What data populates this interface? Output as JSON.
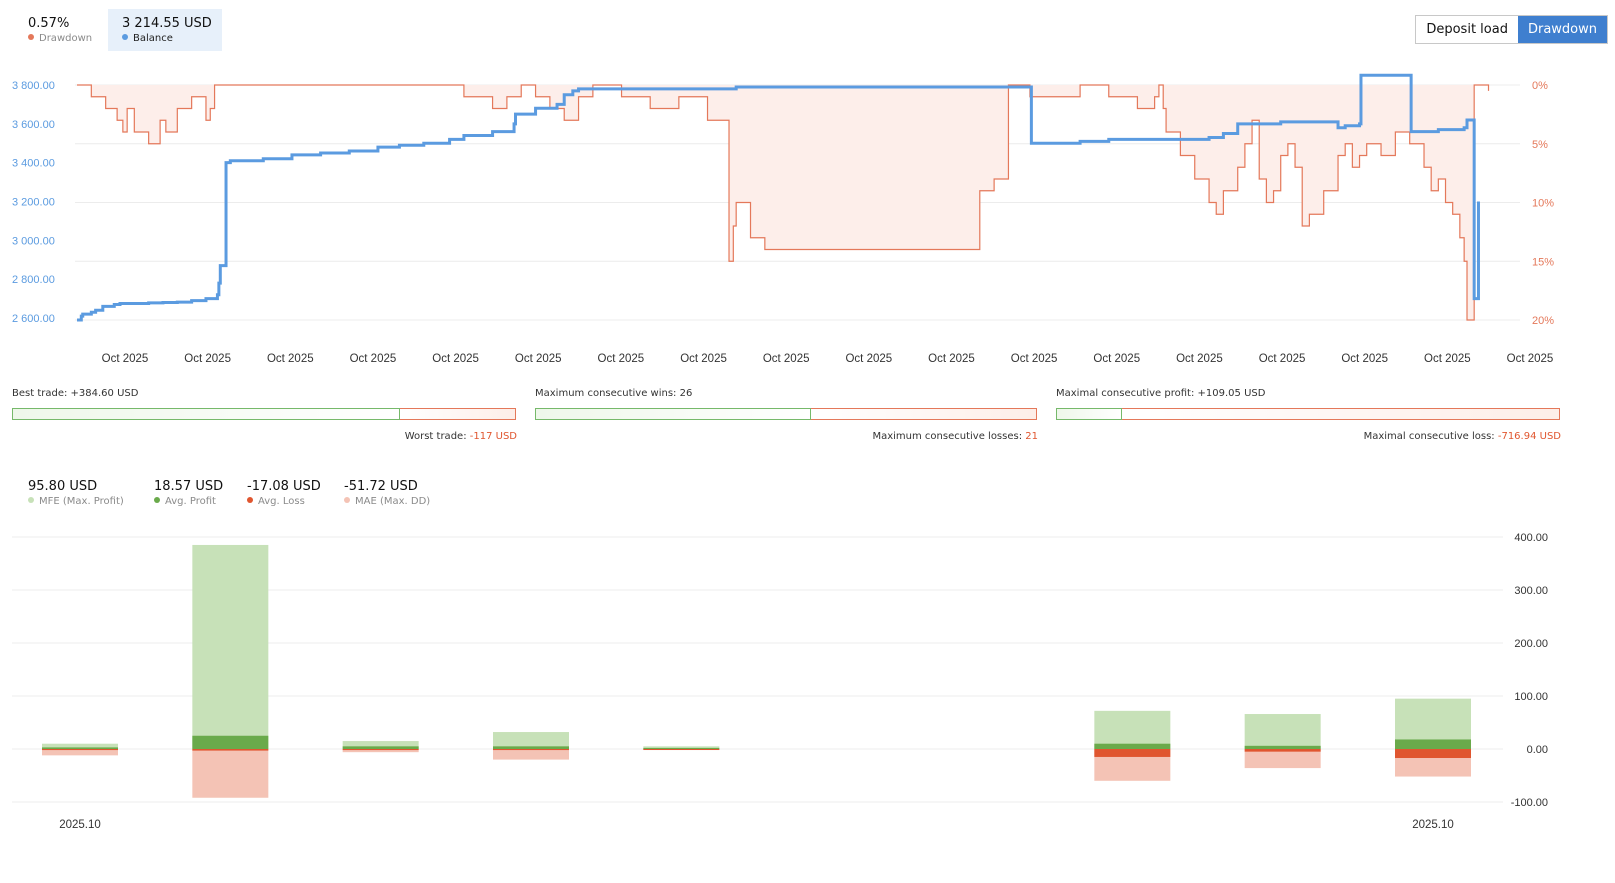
{
  "legend_top": [
    {
      "value": "0.57%",
      "label": "Drawdown",
      "color": "#e4785a"
    },
    {
      "value": "3 214.55 USD",
      "label": "Balance",
      "color": "#5b9be0"
    }
  ],
  "toggle": {
    "deposit_load": "Deposit load",
    "drawdown": "Drawdown",
    "active": "drawdown"
  },
  "chart_data": [
    {
      "type": "line",
      "title": "",
      "x_tick_labels": [
        "Oct 2025",
        "Oct 2025",
        "Oct 2025",
        "Oct 2025",
        "Oct 2025",
        "Oct 2025",
        "Oct 2025",
        "Oct 2025",
        "Oct 2025",
        "Oct 2025",
        "Oct 2025",
        "Oct 2025",
        "Oct 2025",
        "Oct 2025",
        "Oct 2025",
        "Oct 2025",
        "Oct 2025",
        "Oct 2025"
      ],
      "y_left_ticks": [
        "3 800.00",
        "3 600.00",
        "3 400.00",
        "3 200.00",
        "3 000.00",
        "2 800.00",
        "2 600.00"
      ],
      "y_left_range": [
        2590,
        3800
      ],
      "y_right_ticks": [
        "0%",
        "5%",
        "10%",
        "15%",
        "20%"
      ],
      "y_right_range": [
        0,
        20
      ],
      "grid": true,
      "series": [
        {
          "name": "Balance",
          "color": "#5b9be0",
          "axis": "left",
          "x": [
            0.0,
            0.003,
            0.004,
            0.01,
            0.013,
            0.018,
            0.026,
            0.03,
            0.04,
            0.05,
            0.06,
            0.07,
            0.08,
            0.09,
            0.098,
            0.099,
            0.1,
            0.104,
            0.107,
            0.13,
            0.15,
            0.17,
            0.19,
            0.21,
            0.225,
            0.242,
            0.25,
            0.26,
            0.27,
            0.29,
            0.305,
            0.306,
            0.32,
            0.335,
            0.34,
            0.346,
            0.35,
            0.4,
            0.41,
            0.455,
            0.46,
            0.48,
            0.52,
            0.56,
            0.58,
            0.665,
            0.666,
            0.7,
            0.72,
            0.76,
            0.79,
            0.8,
            0.81,
            0.84,
            0.87,
            0.88,
            0.885,
            0.895,
            0.896,
            0.913,
            0.93,
            0.931,
            0.94,
            0.95,
            0.96,
            0.968,
            0.97,
            0.975,
            0.978
          ],
          "y": [
            2590,
            2610,
            2620,
            2630,
            2640,
            2660,
            2670,
            2675,
            2675,
            2678,
            2680,
            2682,
            2690,
            2700,
            2720,
            2780,
            2870,
            3400,
            3410,
            3420,
            3440,
            3450,
            3460,
            3480,
            3490,
            3500,
            3500,
            3520,
            3540,
            3560,
            3600,
            3650,
            3680,
            3700,
            3750,
            3770,
            3780,
            3780,
            3780,
            3780,
            3790,
            3790,
            3790,
            3790,
            3790,
            3790,
            3500,
            3510,
            3520,
            3520,
            3530,
            3550,
            3600,
            3610,
            3610,
            3580,
            3590,
            3600,
            3850,
            3850,
            3850,
            3560,
            3560,
            3570,
            3570,
            3580,
            3620,
            2700,
            3200
          ]
        },
        {
          "name": "Drawdown",
          "color": "#e4785a",
          "axis": "right",
          "fill": "#fdeeea",
          "x": [
            0.0,
            0.01,
            0.02,
            0.028,
            0.032,
            0.035,
            0.04,
            0.05,
            0.058,
            0.062,
            0.07,
            0.08,
            0.09,
            0.093,
            0.096,
            0.1,
            0.105,
            0.15,
            0.2,
            0.24,
            0.26,
            0.27,
            0.29,
            0.3,
            0.31,
            0.32,
            0.33,
            0.34,
            0.35,
            0.36,
            0.38,
            0.4,
            0.42,
            0.44,
            0.455,
            0.458,
            0.46,
            0.47,
            0.48,
            0.49,
            0.5,
            0.51,
            0.52,
            0.53,
            0.54,
            0.55,
            0.56,
            0.57,
            0.58,
            0.59,
            0.6,
            0.62,
            0.625,
            0.63,
            0.64,
            0.65,
            0.66,
            0.665,
            0.7,
            0.72,
            0.74,
            0.752,
            0.755,
            0.758,
            0.76,
            0.77,
            0.78,
            0.79,
            0.795,
            0.8,
            0.81,
            0.815,
            0.82,
            0.825,
            0.83,
            0.835,
            0.84,
            0.845,
            0.85,
            0.855,
            0.86,
            0.87,
            0.88,
            0.885,
            0.89,
            0.895,
            0.9,
            0.91,
            0.92,
            0.93,
            0.94,
            0.945,
            0.95,
            0.955,
            0.96,
            0.965,
            0.968,
            0.97,
            0.975,
            0.98,
            0.985
          ],
          "y": [
            0,
            1,
            2,
            3,
            4,
            2,
            4,
            5,
            3,
            4,
            2,
            1,
            3,
            2,
            0,
            0,
            0,
            0,
            0,
            0,
            0,
            1,
            2,
            1,
            0,
            1,
            2,
            3,
            1,
            0,
            1,
            2,
            1,
            3,
            15,
            12,
            10,
            13,
            14,
            14,
            14,
            14,
            14,
            14,
            14,
            14,
            14,
            14,
            14,
            14,
            14,
            14,
            14,
            9,
            8,
            0,
            0,
            1,
            0,
            1,
            2,
            1,
            0,
            2,
            4,
            6,
            8,
            10,
            11,
            9,
            7,
            5,
            3,
            8,
            10,
            9,
            6,
            5,
            7,
            12,
            11,
            9,
            6,
            5,
            7,
            6,
            5,
            6,
            4,
            5,
            7,
            9,
            8,
            10,
            11,
            13,
            15,
            20,
            0,
            0,
            0.5
          ]
        }
      ]
    },
    {
      "type": "bar",
      "title": "",
      "categories": [
        "2025.10",
        "",
        "",
        "",
        "",
        "",
        "",
        "",
        "",
        "2025.10"
      ],
      "x_tick_labels": [
        "2025.10",
        "2025.10"
      ],
      "y_ticks": [
        "400.00",
        "300.00",
        "200.00",
        "100.00",
        "0.00",
        "-100.00"
      ],
      "ylim": [
        -100,
        400
      ],
      "grid": true,
      "series": [
        {
          "name": "MFE (Max. Profit)",
          "color": "#c7e1b8",
          "values": [
            10,
            385,
            15,
            32,
            5,
            null,
            null,
            72,
            66,
            95
          ]
        },
        {
          "name": "Avg. Profit",
          "color": "#6aaa4b",
          "values": [
            3,
            25,
            5,
            5,
            2,
            null,
            null,
            10,
            6,
            18
          ]
        },
        {
          "name": "Avg. Loss",
          "color": "#e0562f",
          "values": [
            -2,
            -3,
            -2,
            -2,
            -1,
            null,
            null,
            -15,
            -5,
            -17
          ]
        },
        {
          "name": "MAE (Max. DD)",
          "color": "#f4c3b5",
          "values": [
            -12,
            -92,
            -6,
            -20,
            -2,
            null,
            null,
            -60,
            -36,
            -52
          ]
        }
      ]
    }
  ],
  "stats": [
    {
      "top_label": "Best trade:",
      "top_value": "+384.60 USD",
      "bottom_label": "Worst trade:",
      "bottom_value": "-117 USD",
      "green_ratio": 0.77
    },
    {
      "top_label": "Maximum consecutive wins:",
      "top_value": "26",
      "bottom_label": "Maximum consecutive losses:",
      "bottom_value": "21",
      "green_ratio": 0.55
    },
    {
      "top_label": "Maximal consecutive profit:",
      "top_value": "+109.05 USD",
      "bottom_label": "Maximal consecutive loss:",
      "bottom_value": "-716.94 USD",
      "green_ratio": 0.13
    }
  ],
  "legend_bottom": [
    {
      "value": "95.80 USD",
      "label": "MFE (Max. Profit)",
      "color": "#c7e1b8"
    },
    {
      "value": "18.57 USD",
      "label": "Avg. Profit",
      "color": "#6aaa4b"
    },
    {
      "value": "-17.08 USD",
      "label": "Avg. Loss",
      "color": "#e0562f"
    },
    {
      "value": "-51.72 USD",
      "label": "MAE (Max. DD)",
      "color": "#f4c3b5"
    }
  ]
}
